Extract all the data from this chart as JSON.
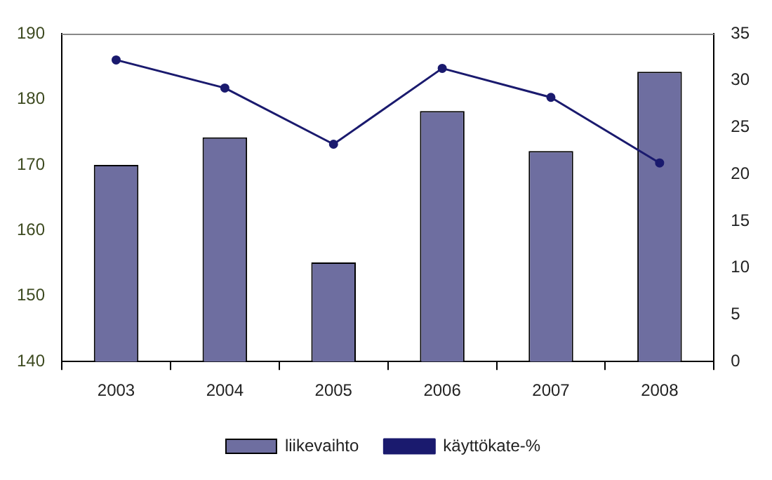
{
  "chart_data": {
    "type": "bar",
    "categories": [
      "2003",
      "2004",
      "2005",
      "2006",
      "2007",
      "2008"
    ],
    "series": [
      {
        "name": "liikevaihto",
        "color": "#6e6ea0",
        "values": [
          170,
          174.2,
          155.1,
          178.2,
          172.1,
          184.2
        ]
      },
      {
        "name": "käyttökate-%",
        "type": "line",
        "axis": "y2",
        "color": "#1a1a6e",
        "values": [
          32.2,
          29.2,
          23.2,
          31.3,
          28.2,
          21.2
        ]
      }
    ],
    "ylim": [
      140,
      190
    ],
    "yticks": [
      140,
      150,
      160,
      170,
      180,
      190
    ],
    "y2lim": [
      0,
      35
    ],
    "y2ticks": [
      0,
      5,
      10,
      15,
      20,
      25,
      30,
      35
    ],
    "grid": false,
    "legend": "bottom",
    "marker": "circle",
    "line_style": "solid"
  }
}
